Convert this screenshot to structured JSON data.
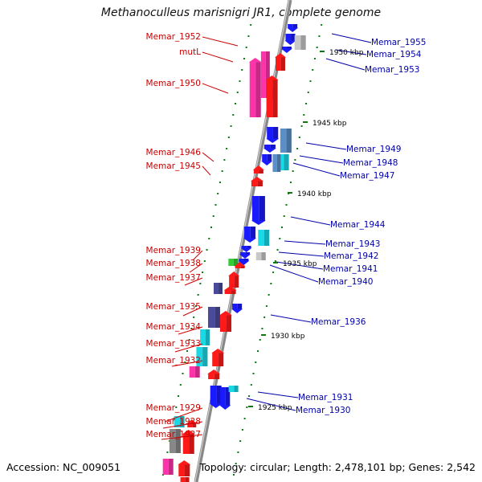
{
  "title": "Methanoculleus marisnigri JR1, complete genome",
  "footer": {
    "accession": "Accession: NC_009051",
    "summary": "Topology: circular; Length: 2,478,101 bp; Genes: 2,542"
  },
  "scale_labels": [
    "1950 kbp",
    "1945 kbp",
    "1940 kbp",
    "1935 kbp",
    "1930 kbp",
    "1925 kbp"
  ],
  "left_gene_labels": [
    "Memar_1952",
    "mutL",
    "Memar_1950",
    "Memar_1946",
    "Memar_1945",
    "Memar_1939",
    "Memar_1938",
    "Memar_1937",
    "Memar_1935",
    "Memar_1934",
    "Memar_1933",
    "Memar_1932",
    "Memar_1929",
    "Memar_1928",
    "Memar_1927"
  ],
  "right_gene_labels": [
    "Memar_1955",
    "Memar_1954",
    "Memar_1953",
    "Memar_1949",
    "Memar_1948",
    "Memar_1947",
    "Memar_1944",
    "Memar_1943",
    "Memar_1942",
    "Memar_1941",
    "Memar_1940",
    "Memar_1936",
    "Memar_1931",
    "Memar_1930"
  ],
  "colors": {
    "forward_label": "#cc0000",
    "reverse_label": "#0000aa",
    "red": "#ff1a1a",
    "blue": "#1a1aff",
    "magenta": "#ff33aa",
    "cyan": "#1ad9e6",
    "purple": "#4a4a9a",
    "steel": "#5a8fc8",
    "gray": "#888888",
    "lightgray": "#c8c8c8",
    "green": "#33cc33",
    "backbone": "#888888",
    "tick": "#117711"
  }
}
